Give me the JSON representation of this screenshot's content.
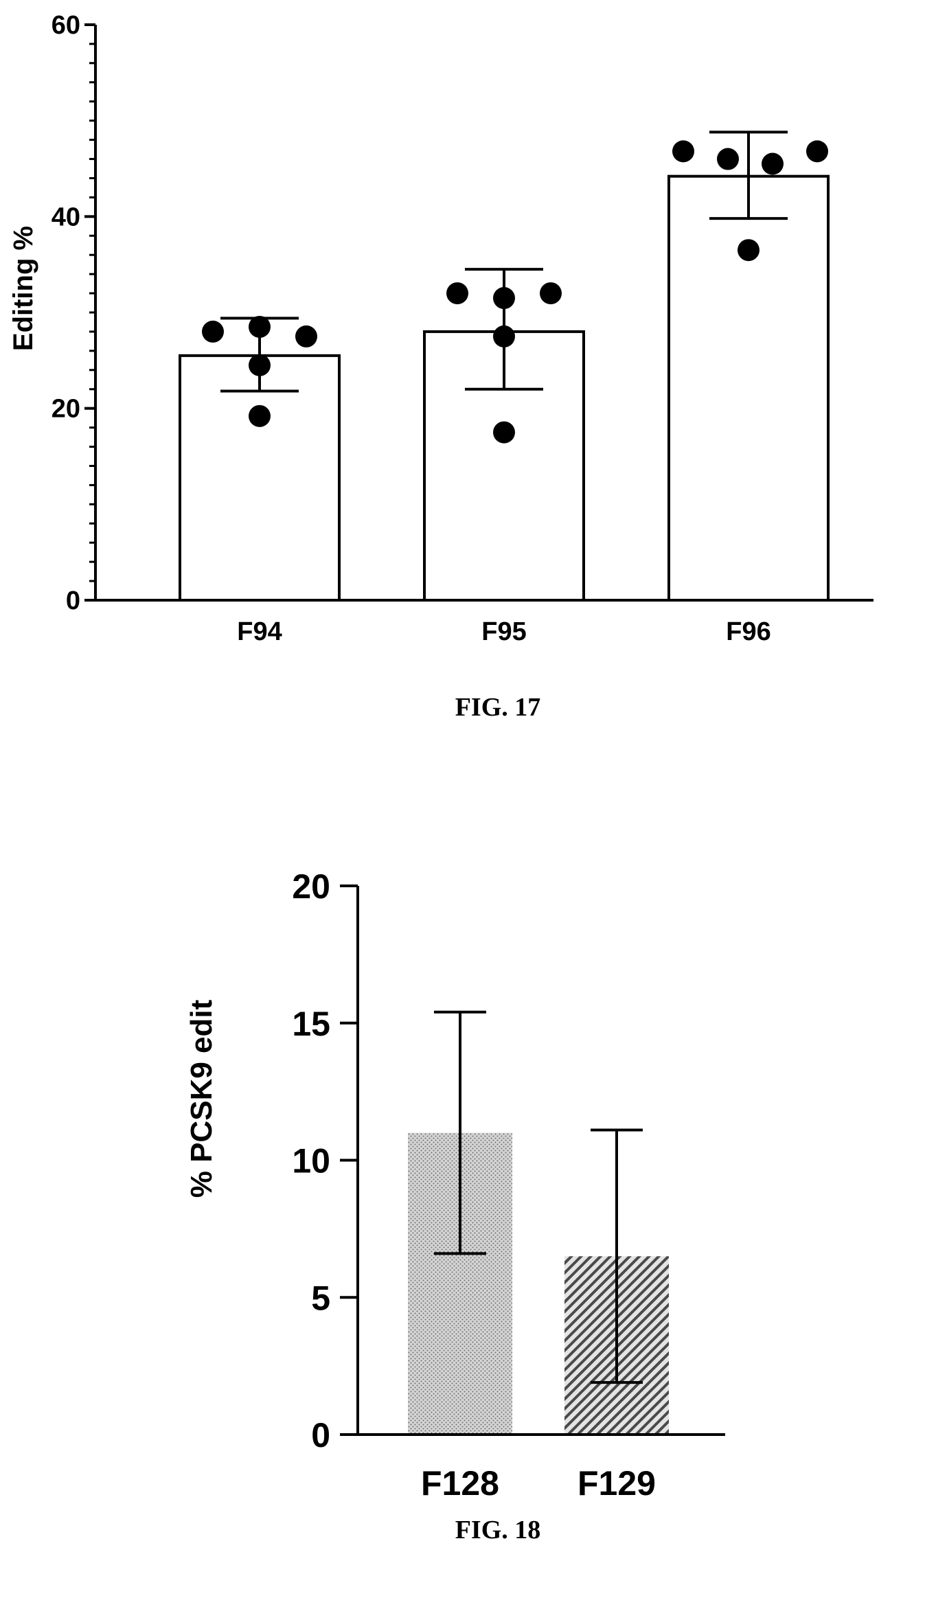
{
  "chart_data": [
    {
      "type": "bar",
      "caption": "FIG. 17",
      "ylabel": "Editing %",
      "xlabel": "",
      "ylim": [
        0,
        60
      ],
      "yticks": [
        0,
        20,
        40,
        60
      ],
      "y_minor_step": 2,
      "grid": false,
      "categories": [
        "F94",
        "F95",
        "F96"
      ],
      "values": [
        25.5,
        28,
        44.2
      ],
      "error_low": [
        21.8,
        22,
        39.8
      ],
      "error_high": [
        29.4,
        34.5,
        48.8
      ],
      "points": [
        [
          28,
          28.5,
          27.5,
          24.5,
          19.2
        ],
        [
          32,
          31.5,
          32,
          27.5,
          17.5
        ],
        [
          46.8,
          46,
          45.5,
          46.8,
          36.5
        ]
      ],
      "bar_fill": "#ffffff",
      "bar_stroke": "#000000",
      "point_color": "#000000"
    },
    {
      "type": "bar",
      "caption": "FIG. 18",
      "ylabel": "% PCSK9 edit",
      "xlabel": "",
      "ylim": [
        0,
        20
      ],
      "yticks": [
        0,
        5,
        10,
        15,
        20
      ],
      "grid": false,
      "categories": [
        "F128",
        "F129"
      ],
      "values": [
        11,
        6.5
      ],
      "error_low": [
        6.6,
        1.9
      ],
      "error_high": [
        15.4,
        11.1
      ],
      "bar_patterns": [
        "dots",
        "diagonal-stripes"
      ],
      "bar_fill": "#c8c8c8",
      "bar_stroke": "#000000"
    }
  ]
}
